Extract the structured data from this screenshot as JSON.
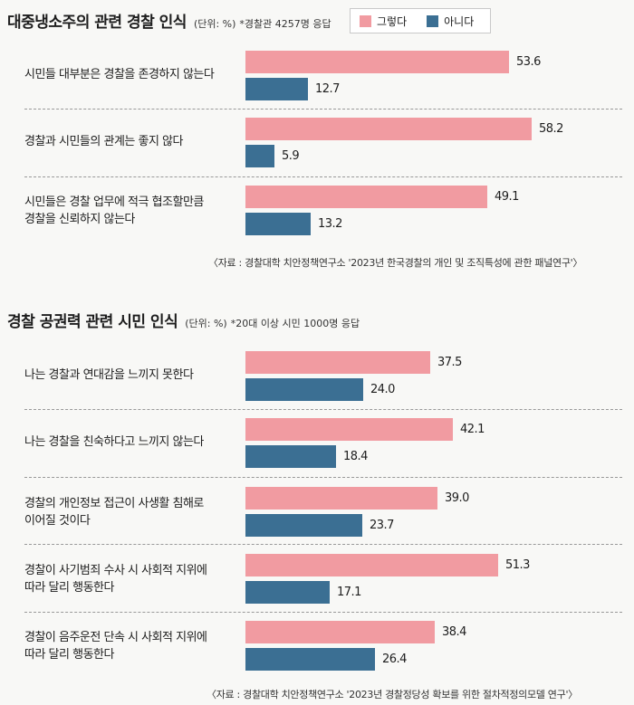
{
  "legend": {
    "yes_label": "그렇다",
    "no_label": "아니다",
    "yes_color": "#f19ba1",
    "no_color": "#3b6f93"
  },
  "chart_data": [
    {
      "type": "bar",
      "orientation": "horizontal",
      "title": "대중냉소주의 관련 경찰 인식",
      "unit_label": "(단위: %)",
      "note": "*경찰관 4257명 응답",
      "categories": [
        "시민들 대부분은 경찰을 존경하지 않는다",
        "경찰과 시민들의 관계는 좋지 않다",
        "시민들은 경찰 업무에 적극 협조할만큼\n경찰을 신뢰하지 않는다"
      ],
      "series": [
        {
          "name": "그렇다",
          "values": [
            53.6,
            58.2,
            49.1
          ],
          "labels": [
            "53.6",
            "58.2",
            "49.1"
          ]
        },
        {
          "name": "아니다",
          "values": [
            12.7,
            5.9,
            13.2
          ],
          "labels": [
            "12.7",
            "5.9",
            "13.2"
          ]
        }
      ],
      "source": "〈자료 : 경찰대학 치안정책연구소 '2023년 한국경찰의 개인 및 조직특성에 관한 패널연구'〉"
    },
    {
      "type": "bar",
      "orientation": "horizontal",
      "title": "경찰 공권력 관련 시민 인식",
      "unit_label": "(단위: %)",
      "note": "*20대 이상 시민 1000명 응답",
      "categories": [
        "나는 경찰과 연대감을 느끼지 못한다",
        "나는 경찰을 친숙하다고 느끼지 않는다",
        "경찰의 개인정보 접근이 사생활 침해로\n이어질 것이다",
        "경찰이 사기범죄 수사 시 사회적 지위에\n따라 달리 행동한다",
        "경찰이 음주운전 단속 시 사회적 지위에\n따라 달리 행동한다"
      ],
      "series": [
        {
          "name": "그렇다",
          "values": [
            37.5,
            42.1,
            39.0,
            51.3,
            38.4
          ],
          "labels": [
            "37.5",
            "42.1",
            "39.0",
            "51.3",
            "38.4"
          ]
        },
        {
          "name": "아니다",
          "values": [
            24.0,
            18.4,
            23.7,
            17.1,
            26.4
          ],
          "labels": [
            "24.0",
            "18.4",
            "23.7",
            "17.1",
            "26.4"
          ]
        }
      ],
      "source": "〈자료 : 경찰대학 치안정책연구소 '2023년 경찰정당성 확보를 위한 절차적정의모델 연구'〉"
    }
  ]
}
